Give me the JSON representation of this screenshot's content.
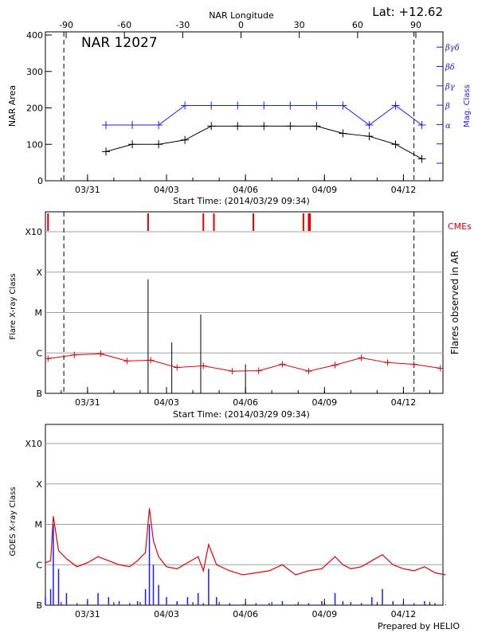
{
  "header": {
    "lat_label": "Lat: +12.62",
    "ar_name": "NAR 12027",
    "footer": "Prepared by HELIO"
  },
  "colors": {
    "black": "#000000",
    "blue": "#1a1aff",
    "red": "#e00000",
    "grid": "#a0a0a0"
  },
  "chart_data": [
    {
      "type": "line",
      "panel": "top",
      "top_axis_label": "NAR Longitude",
      "top_ticks": [
        "-90",
        "-60",
        "-30",
        "0",
        "30",
        "60",
        "90"
      ],
      "top_tick_values": [
        -90,
        -60,
        -30,
        0,
        30,
        60,
        90
      ],
      "ylabel": "NAR Area",
      "ylim": [
        0,
        400
      ],
      "yticks": [
        "0",
        "100",
        "200",
        "300",
        "400"
      ],
      "right_axis_label": "Mag. Class",
      "right_ticks": [
        "α",
        "β",
        "βγ",
        "βδ",
        "βγδ"
      ],
      "xticks": [
        "03/31",
        "04/03",
        "04/06",
        "04/09",
        "04/12"
      ],
      "xlabel": "Start Time: (2014/03/29 09:34)",
      "dashed_lines_days": [
        0.7,
        14.0
      ],
      "series": [
        {
          "color": "#000000",
          "x_days": [
            2.3,
            3.3,
            4.3,
            5.3,
            6.3,
            7.3,
            8.3,
            9.3,
            10.3,
            11.3,
            12.3,
            13.3,
            14.3
          ],
          "values": [
            80,
            100,
            100,
            112,
            150,
            150,
            150,
            150,
            150,
            130,
            122,
            100,
            60
          ]
        },
        {
          "color": "#1a1aff",
          "axis": "right",
          "x_days": [
            2.3,
            3.3,
            4.3,
            5.3,
            6.3,
            7.3,
            8.3,
            9.3,
            10.3,
            11.3,
            12.3,
            13.3,
            14.3
          ],
          "class_index": [
            1,
            1,
            1,
            2,
            2,
            2,
            2,
            2,
            2,
            2,
            1,
            2,
            1
          ]
        }
      ]
    },
    {
      "type": "bar",
      "panel": "middle",
      "ylabel": "Flare X-ray Class",
      "right_axis_label": "Flares observed in AR",
      "cme_label": "CMEs",
      "class_ticks": [
        "B",
        "C",
        "M",
        "X",
        "X10"
      ],
      "xticks": [
        "03/31",
        "04/03",
        "04/06",
        "04/09",
        "04/12"
      ],
      "xlabel": "Start Time: (2014/03/29 09:34)",
      "dashed_lines_days": [
        0.7,
        14.0
      ],
      "cme_days": [
        0.1,
        3.9,
        6.0,
        6.4,
        7.9,
        9.8,
        10.0,
        10.05
      ],
      "flares": [
        {
          "day": 3.9,
          "class_log": 2.82
        },
        {
          "day": 4.8,
          "class_log": 1.26
        },
        {
          "day": 5.9,
          "class_log": 1.95
        },
        {
          "day": 7.6,
          "class_log": 0.72
        }
      ],
      "series": [
        {
          "color": "#e00000",
          "x_days": [
            0.1,
            1.1,
            2.1,
            3.1,
            4.0,
            5.0,
            6.0,
            7.1,
            8.1,
            9.0,
            10.0,
            11.0,
            12.0,
            13.0,
            14.0,
            15.0
          ],
          "class_log": [
            0.86,
            0.95,
            0.98,
            0.8,
            0.82,
            0.64,
            0.68,
            0.55,
            0.56,
            0.72,
            0.55,
            0.7,
            0.88,
            0.76,
            0.72,
            0.62
          ]
        }
      ]
    },
    {
      "type": "line",
      "panel": "bottom",
      "ylabel": "GOES X-ray Class",
      "class_ticks": [
        "B",
        "C",
        "M",
        "X",
        "X10"
      ],
      "xticks": [
        "03/31",
        "04/03",
        "04/06",
        "04/09",
        "04/12"
      ],
      "series": [
        {
          "color": "#e00000",
          "x_days": [
            0.0,
            0.2,
            0.3,
            0.5,
            0.8,
            1.2,
            1.6,
            2.0,
            2.4,
            2.8,
            3.2,
            3.5,
            3.8,
            3.95,
            4.1,
            4.3,
            4.6,
            5.0,
            5.4,
            5.8,
            6.0,
            6.2,
            6.5,
            7.0,
            7.5,
            8.0,
            8.5,
            9.0,
            9.5,
            10.0,
            10.5,
            11.0,
            11.3,
            11.6,
            12.0,
            12.4,
            12.8,
            13.2,
            13.6,
            14.0,
            14.4,
            14.8,
            15.2
          ],
          "class_log": [
            1.05,
            1.1,
            2.2,
            1.35,
            1.15,
            0.95,
            1.05,
            1.2,
            1.1,
            1.0,
            0.95,
            1.1,
            1.3,
            2.4,
            1.6,
            1.2,
            0.95,
            0.9,
            1.05,
            1.2,
            0.85,
            1.5,
            1.0,
            0.85,
            0.75,
            0.8,
            0.85,
            1.0,
            0.75,
            0.85,
            0.9,
            1.2,
            1.0,
            0.9,
            0.95,
            1.1,
            1.25,
            1.0,
            0.9,
            0.85,
            0.95,
            0.8,
            0.75
          ]
        },
        {
          "color": "#1a1aff",
          "x_days": [
            0.0,
            0.2,
            0.3,
            0.5,
            0.8,
            1.2,
            1.6,
            2.0,
            2.4,
            2.8,
            3.2,
            3.5,
            3.8,
            3.95,
            4.1,
            4.3,
            4.6,
            5.0,
            5.4,
            5.8,
            6.0,
            6.2,
            6.5,
            7.0,
            7.5,
            8.0,
            8.5,
            9.0,
            9.5,
            10.0,
            10.5,
            11.0,
            11.3,
            11.6,
            12.0,
            12.4,
            12.8,
            13.2,
            13.6,
            14.0,
            14.4,
            14.8,
            15.2
          ],
          "class_log": [
            0.2,
            0.4,
            2.0,
            0.9,
            0.3,
            0.05,
            0.1,
            0.3,
            0.2,
            0.1,
            0.05,
            0.1,
            0.4,
            2.0,
            1.0,
            0.5,
            0.2,
            0.1,
            0.2,
            0.3,
            0.05,
            0.9,
            0.2,
            0.05,
            0.02,
            0.05,
            0.05,
            0.1,
            0.02,
            0.05,
            0.1,
            0.3,
            0.1,
            0.05,
            0.05,
            0.2,
            0.4,
            0.1,
            0.05,
            0.05,
            0.1,
            0.05,
            0.02
          ]
        }
      ]
    }
  ]
}
